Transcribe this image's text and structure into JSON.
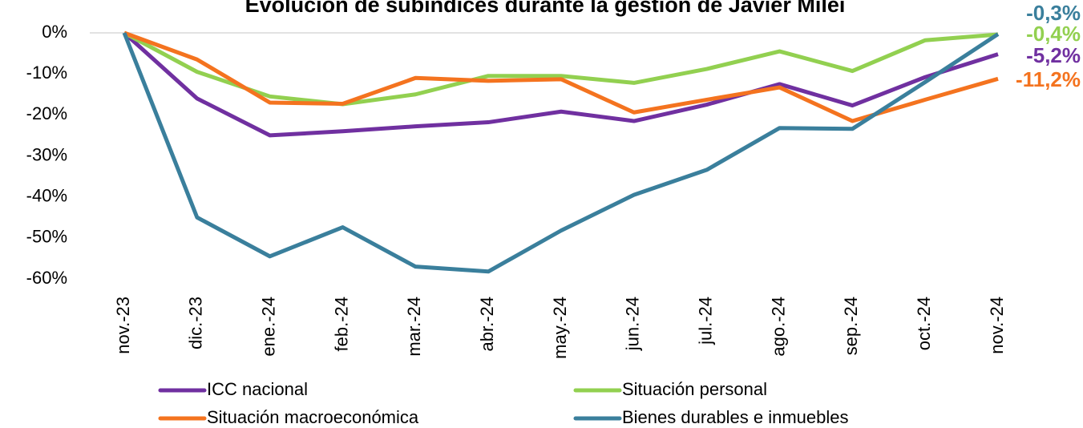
{
  "chart_data": {
    "type": "line",
    "title": "Evolución de subíndices durante la gestión de Javier Milei",
    "categories": [
      "nov.-23",
      "dic.-23",
      "ene.-24",
      "feb.-24",
      "mar.-24",
      "abr.-24",
      "may.-24",
      "jun.-24",
      "jul.-24",
      "ago.-24",
      "sep.-24",
      "oct.-24",
      "nov.-24"
    ],
    "series": [
      {
        "name": "ICC nacional",
        "color": "#7030a0",
        "values": [
          0,
          -16,
          -25,
          -24,
          -22.8,
          -21.8,
          -19.2,
          -21.5,
          -17.5,
          -12.5,
          -17.7,
          -10.8,
          -5.2
        ],
        "value_labels": [
          null,
          null,
          null,
          null,
          null,
          null,
          null,
          null,
          null,
          null,
          null,
          null,
          "-5,2%"
        ]
      },
      {
        "name": "Situación personal",
        "color": "#92d050",
        "values": [
          0,
          -9.5,
          -15.5,
          -17.4,
          -15,
          -10.5,
          -10.5,
          -12.2,
          -8.8,
          -4.5,
          -9.3,
          -1.8,
          -0.4
        ],
        "value_labels": [
          null,
          null,
          null,
          null,
          null,
          null,
          null,
          null,
          null,
          null,
          null,
          null,
          "-0,4%"
        ]
      },
      {
        "name": "Situación macroeconómica",
        "color": "#f4731f",
        "values": [
          0,
          -6.5,
          -17,
          -17.3,
          -11,
          -11.7,
          -11.3,
          -19.4,
          -16.3,
          -13.3,
          -21.5,
          -16.3,
          -11.2
        ],
        "value_labels": [
          null,
          null,
          null,
          null,
          null,
          null,
          null,
          null,
          null,
          null,
          null,
          null,
          "-11,2%"
        ]
      },
      {
        "name": "Bienes durables e inmuebles",
        "color": "#3a7f9c",
        "values": [
          0,
          -45,
          -54.5,
          -47.4,
          -57,
          -58.2,
          -48.2,
          -39.5,
          -33.4,
          -23.2,
          -23.4,
          -12,
          -0.3
        ],
        "value_labels": [
          null,
          null,
          null,
          null,
          null,
          null,
          null,
          null,
          null,
          null,
          null,
          null,
          "-0,3%"
        ]
      }
    ],
    "ylim": [
      -60,
      0
    ],
    "yticks": [
      {
        "value": 0,
        "label": "0%"
      },
      {
        "value": -10,
        "label": "-10%"
      },
      {
        "value": -20,
        "label": "-20%"
      },
      {
        "value": -30,
        "label": "-30%"
      },
      {
        "value": -40,
        "label": "-40%"
      },
      {
        "value": -50,
        "label": "-50%"
      },
      {
        "value": -60,
        "label": "-60%"
      }
    ],
    "grid": false
  }
}
